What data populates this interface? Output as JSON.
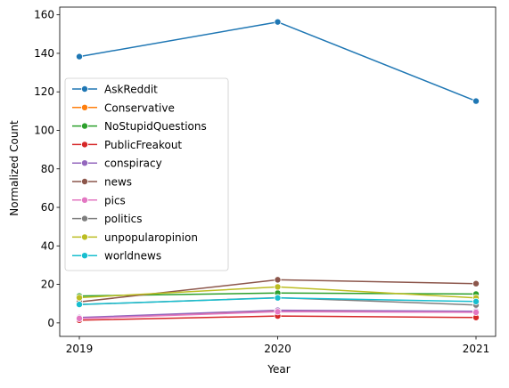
{
  "chart_data": {
    "type": "line",
    "title": "",
    "xlabel": "Year",
    "ylabel": "Normalized Count",
    "x": [
      "2019",
      "2020",
      "2021"
    ],
    "ylim": [
      -7,
      164
    ],
    "yticks": [
      0,
      20,
      40,
      60,
      80,
      100,
      120,
      140,
      160
    ],
    "grid": false,
    "legend_position": "center-left",
    "series": [
      {
        "name": "AskReddit",
        "color": "#1f77b4",
        "values": [
          138.3,
          156.3,
          115.2
        ]
      },
      {
        "name": "Conservative",
        "color": "#ff7f0e",
        "values": [
          2.6,
          6.2,
          5.9
        ]
      },
      {
        "name": "NoStupidQuestions",
        "color": "#2ca02c",
        "values": [
          14.0,
          15.5,
          15.0
        ]
      },
      {
        "name": "PublicFreakout",
        "color": "#d62728",
        "values": [
          1.4,
          3.6,
          2.8
        ]
      },
      {
        "name": "conspiracy",
        "color": "#9467bd",
        "values": [
          2.8,
          6.6,
          6.1
        ]
      },
      {
        "name": "news",
        "color": "#8c564b",
        "values": [
          10.9,
          22.4,
          20.4
        ]
      },
      {
        "name": "pics",
        "color": "#e377c2",
        "values": [
          2.3,
          5.8,
          5.5
        ]
      },
      {
        "name": "politics",
        "color": "#7f7f7f",
        "values": [
          9.5,
          13.1,
          9.3
        ]
      },
      {
        "name": "unpopularopinion",
        "color": "#bcbd22",
        "values": [
          13.1,
          18.7,
          13.0
        ]
      },
      {
        "name": "worldnews",
        "color": "#17becf",
        "values": [
          9.6,
          13.0,
          11.1
        ]
      }
    ]
  }
}
